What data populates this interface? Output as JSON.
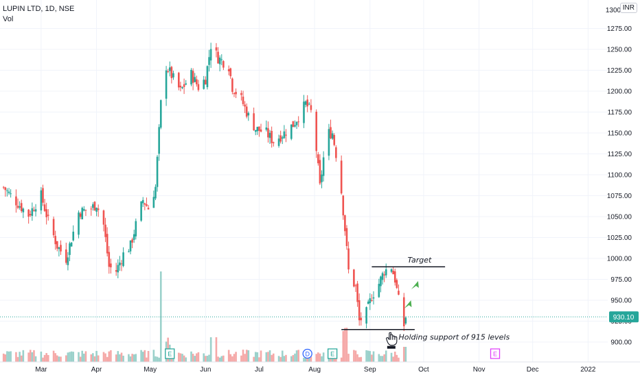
{
  "header": {
    "symbol_line": "LUPIN LTD, 1D, NSE",
    "volume_label": "Vol",
    "currency": "INR"
  },
  "chart_data": {
    "type": "candlestick",
    "title": "LUPIN LTD, 1D, NSE",
    "currency": "INR",
    "yticks": [
      900,
      925,
      950,
      975,
      1000,
      1025,
      1050,
      1075,
      1100,
      1125,
      1150,
      1175,
      1200,
      1225,
      1250,
      1275
    ],
    "ylim": [
      880,
      1300
    ],
    "xticks": [
      "Mar",
      "Apr",
      "May",
      "Jun",
      "Jul",
      "Aug",
      "Sep",
      "Oct",
      "Nov",
      "Dec",
      "2022"
    ],
    "xlim": [
      "2021-02-06",
      "2022-01-12"
    ],
    "last_price": 930.1,
    "colors": {
      "up": "#26a69a",
      "down": "#ef5350",
      "vol_up": "#9bd1cb",
      "vol_down": "#f5a9a8",
      "grid": "#f0f3fa",
      "axis_text": "#131722"
    },
    "closes": [
      {
        "date": "2021-02-08",
        "close": 1085
      },
      {
        "date": "2021-02-15",
        "close": 1068
      },
      {
        "date": "2021-02-22",
        "close": 1052
      },
      {
        "date": "2021-03-01",
        "close": 1075
      },
      {
        "date": "2021-03-05",
        "close": 1045
      },
      {
        "date": "2021-03-10",
        "close": 1015
      },
      {
        "date": "2021-03-15",
        "close": 1000
      },
      {
        "date": "2021-03-22",
        "close": 1055
      },
      {
        "date": "2021-03-29",
        "close": 1060
      },
      {
        "date": "2021-04-01",
        "close": 1065
      },
      {
        "date": "2021-04-05",
        "close": 1040
      },
      {
        "date": "2021-04-08",
        "close": 990
      },
      {
        "date": "2021-04-12",
        "close": 985
      },
      {
        "date": "2021-04-16",
        "close": 1005
      },
      {
        "date": "2021-04-20",
        "close": 1015
      },
      {
        "date": "2021-04-23",
        "close": 1040
      },
      {
        "date": "2021-04-27",
        "close": 1070
      },
      {
        "date": "2021-04-30",
        "close": 1060
      },
      {
        "date": "2021-05-04",
        "close": 1085
      },
      {
        "date": "2021-05-07",
        "close": 1185
      },
      {
        "date": "2021-05-10",
        "close": 1230
      },
      {
        "date": "2021-05-14",
        "close": 1215
      },
      {
        "date": "2021-05-18",
        "close": 1200
      },
      {
        "date": "2021-05-24",
        "close": 1220
      },
      {
        "date": "2021-05-28",
        "close": 1205
      },
      {
        "date": "2021-06-01",
        "close": 1215
      },
      {
        "date": "2021-06-04",
        "close": 1255
      },
      {
        "date": "2021-06-08",
        "close": 1240
      },
      {
        "date": "2021-06-14",
        "close": 1230
      },
      {
        "date": "2021-06-16",
        "close": 1205
      },
      {
        "date": "2021-06-21",
        "close": 1190
      },
      {
        "date": "2021-06-25",
        "close": 1170
      },
      {
        "date": "2021-06-29",
        "close": 1155
      },
      {
        "date": "2021-07-05",
        "close": 1150
      },
      {
        "date": "2021-07-09",
        "close": 1140
      },
      {
        "date": "2021-07-15",
        "close": 1150
      },
      {
        "date": "2021-07-20",
        "close": 1160
      },
      {
        "date": "2021-07-23",
        "close": 1170
      },
      {
        "date": "2021-07-27",
        "close": 1185
      },
      {
        "date": "2021-07-30",
        "close": 1175
      },
      {
        "date": "2021-08-02",
        "close": 1130
      },
      {
        "date": "2021-08-04",
        "close": 1085
      },
      {
        "date": "2021-08-06",
        "close": 1120
      },
      {
        "date": "2021-08-09",
        "close": 1150
      },
      {
        "date": "2021-08-11",
        "close": 1150
      },
      {
        "date": "2021-08-13",
        "close": 1125
      },
      {
        "date": "2021-08-16",
        "close": 1080
      },
      {
        "date": "2021-08-18",
        "close": 1035
      },
      {
        "date": "2021-08-20",
        "close": 985
      },
      {
        "date": "2021-08-24",
        "close": 965
      },
      {
        "date": "2021-08-26",
        "close": 925
      },
      {
        "date": "2021-08-30",
        "close": 935
      },
      {
        "date": "2021-09-02",
        "close": 955
      },
      {
        "date": "2021-09-06",
        "close": 970
      },
      {
        "date": "2021-09-09",
        "close": 985
      },
      {
        "date": "2021-09-13",
        "close": 990
      },
      {
        "date": "2021-09-15",
        "close": 975
      },
      {
        "date": "2021-09-17",
        "close": 950
      },
      {
        "date": "2021-09-20",
        "close": 920
      },
      {
        "date": "2021-09-21",
        "close": 930.1
      }
    ],
    "annotations": {
      "target_label": "Target",
      "target_level": 990,
      "support_label": "Holding support of 915 levels",
      "support_level": 915
    },
    "events": [
      {
        "date": "2021-05-12",
        "label": "E",
        "color": "#26a69a"
      },
      {
        "date": "2021-07-28",
        "label": "D",
        "color": "#2962ff"
      },
      {
        "date": "2021-08-11",
        "label": "E",
        "color": "#26a69a"
      },
      {
        "date": "2021-11-10",
        "label": "E",
        "color": "#e040fb"
      }
    ]
  }
}
